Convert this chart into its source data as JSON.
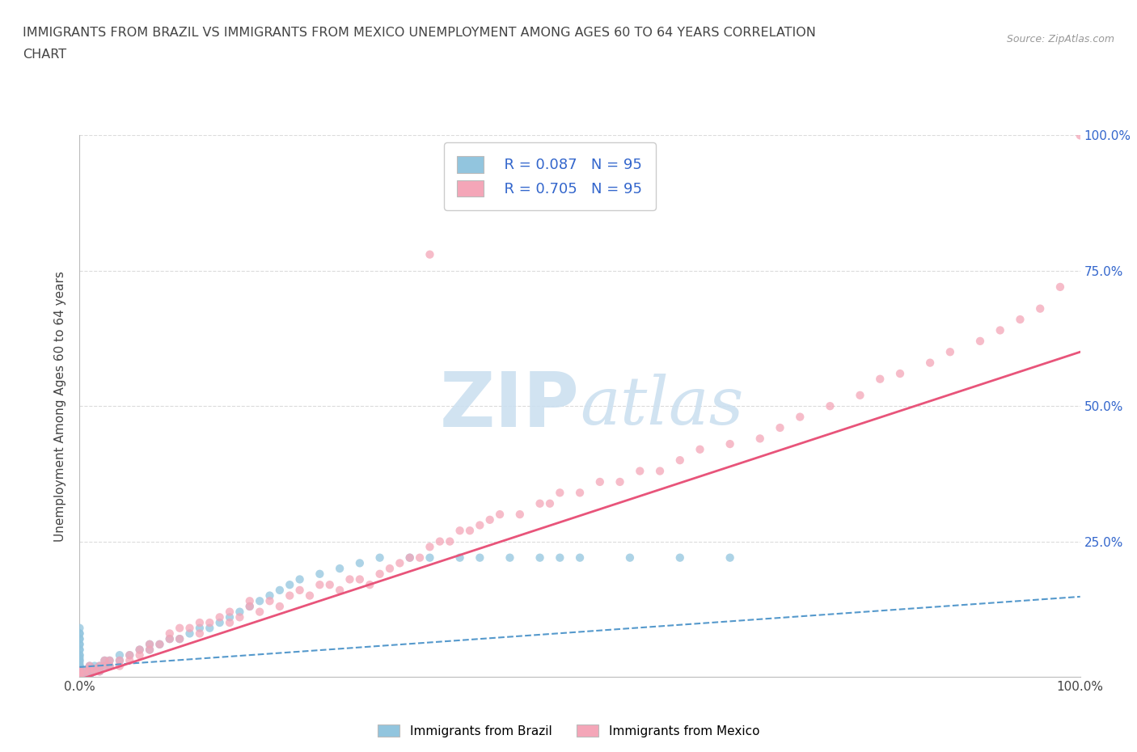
{
  "title_line1": "IMMIGRANTS FROM BRAZIL VS IMMIGRANTS FROM MEXICO UNEMPLOYMENT AMONG AGES 60 TO 64 YEARS CORRELATION",
  "title_line2": "CHART",
  "source": "Source: ZipAtlas.com",
  "ylabel": "Unemployment Among Ages 60 to 64 years",
  "xlim": [
    0,
    1.0
  ],
  "ylim": [
    0,
    1.0
  ],
  "R_brazil": 0.087,
  "R_mexico": 0.705,
  "N": 95,
  "brazil_color": "#92c5de",
  "mexico_color": "#f4a6b8",
  "brazil_line_color": "#5599cc",
  "mexico_line_color": "#e8547a",
  "watermark_color": "#cce0f0",
  "legend_label_brazil": "Immigrants from Brazil",
  "legend_label_mexico": "Immigrants from Mexico",
  "grid_color": "#cccccc",
  "background_color": "#ffffff",
  "axis_label_color": "#3366cc",
  "text_color": "#444444",
  "brazil_trend_slope": 0.13,
  "brazil_trend_intercept": 0.018,
  "mexico_trend_slope": 0.605,
  "mexico_trend_intercept": -0.005,
  "brazil_x": [
    0.0,
    0.0,
    0.0,
    0.0,
    0.0,
    0.0,
    0.0,
    0.0,
    0.0,
    0.0,
    0.0,
    0.0,
    0.0,
    0.0,
    0.0,
    0.0,
    0.0,
    0.0,
    0.0,
    0.0,
    0.0,
    0.0,
    0.0,
    0.0,
    0.0,
    0.0,
    0.0,
    0.0,
    0.0,
    0.0,
    0.0,
    0.0,
    0.0,
    0.0,
    0.0,
    0.0,
    0.0,
    0.0,
    0.0,
    0.0,
    0.0,
    0.0,
    0.0,
    0.005,
    0.005,
    0.005,
    0.01,
    0.01,
    0.01,
    0.01,
    0.01,
    0.015,
    0.015,
    0.02,
    0.02,
    0.025,
    0.025,
    0.03,
    0.03,
    0.04,
    0.04,
    0.05,
    0.06,
    0.07,
    0.07,
    0.08,
    0.09,
    0.1,
    0.11,
    0.12,
    0.13,
    0.14,
    0.15,
    0.16,
    0.17,
    0.18,
    0.19,
    0.2,
    0.21,
    0.22,
    0.24,
    0.26,
    0.28,
    0.3,
    0.33,
    0.35,
    0.38,
    0.4,
    0.43,
    0.46,
    0.48,
    0.5,
    0.55,
    0.6,
    0.65
  ],
  "brazil_y": [
    0.0,
    0.0,
    0.0,
    0.0,
    0.0,
    0.0,
    0.0,
    0.0,
    0.0,
    0.0,
    0.0,
    0.0,
    0.0,
    0.0,
    0.0,
    0.005,
    0.005,
    0.005,
    0.01,
    0.01,
    0.01,
    0.01,
    0.015,
    0.015,
    0.015,
    0.02,
    0.02,
    0.02,
    0.025,
    0.03,
    0.03,
    0.035,
    0.04,
    0.04,
    0.05,
    0.05,
    0.06,
    0.06,
    0.07,
    0.07,
    0.08,
    0.08,
    0.09,
    0.0,
    0.005,
    0.01,
    0.0,
    0.005,
    0.01,
    0.015,
    0.02,
    0.01,
    0.02,
    0.01,
    0.02,
    0.02,
    0.03,
    0.02,
    0.03,
    0.03,
    0.04,
    0.04,
    0.05,
    0.05,
    0.06,
    0.06,
    0.07,
    0.07,
    0.08,
    0.09,
    0.09,
    0.1,
    0.11,
    0.12,
    0.13,
    0.14,
    0.15,
    0.16,
    0.17,
    0.18,
    0.19,
    0.2,
    0.21,
    0.22,
    0.22,
    0.22,
    0.22,
    0.22,
    0.22,
    0.22,
    0.22,
    0.22,
    0.22,
    0.22,
    0.22
  ],
  "mexico_x": [
    0.0,
    0.0,
    0.0,
    0.0,
    0.0,
    0.0,
    0.005,
    0.005,
    0.01,
    0.01,
    0.01,
    0.015,
    0.015,
    0.02,
    0.02,
    0.025,
    0.025,
    0.03,
    0.03,
    0.04,
    0.04,
    0.05,
    0.05,
    0.06,
    0.06,
    0.07,
    0.07,
    0.08,
    0.09,
    0.09,
    0.1,
    0.1,
    0.11,
    0.12,
    0.12,
    0.13,
    0.14,
    0.15,
    0.15,
    0.16,
    0.17,
    0.17,
    0.18,
    0.19,
    0.2,
    0.21,
    0.22,
    0.23,
    0.24,
    0.25,
    0.26,
    0.27,
    0.28,
    0.29,
    0.3,
    0.31,
    0.32,
    0.33,
    0.34,
    0.35,
    0.35,
    0.36,
    0.37,
    0.38,
    0.39,
    0.4,
    0.41,
    0.42,
    0.44,
    0.46,
    0.47,
    0.48,
    0.5,
    0.52,
    0.54,
    0.56,
    0.58,
    0.6,
    0.62,
    0.65,
    0.68,
    0.7,
    0.72,
    0.75,
    0.78,
    0.8,
    0.82,
    0.85,
    0.87,
    0.9,
    0.92,
    0.94,
    0.96,
    0.98,
    1.0
  ],
  "mexico_y": [
    0.0,
    0.0,
    0.0,
    0.005,
    0.01,
    0.01,
    0.005,
    0.01,
    0.01,
    0.015,
    0.02,
    0.01,
    0.015,
    0.01,
    0.02,
    0.02,
    0.03,
    0.02,
    0.03,
    0.02,
    0.03,
    0.03,
    0.04,
    0.04,
    0.05,
    0.05,
    0.06,
    0.06,
    0.07,
    0.08,
    0.07,
    0.09,
    0.09,
    0.08,
    0.1,
    0.1,
    0.11,
    0.1,
    0.12,
    0.11,
    0.13,
    0.14,
    0.12,
    0.14,
    0.13,
    0.15,
    0.16,
    0.15,
    0.17,
    0.17,
    0.16,
    0.18,
    0.18,
    0.17,
    0.19,
    0.2,
    0.21,
    0.22,
    0.22,
    0.78,
    0.24,
    0.25,
    0.25,
    0.27,
    0.27,
    0.28,
    0.29,
    0.3,
    0.3,
    0.32,
    0.32,
    0.34,
    0.34,
    0.36,
    0.36,
    0.38,
    0.38,
    0.4,
    0.42,
    0.43,
    0.44,
    0.46,
    0.48,
    0.5,
    0.52,
    0.55,
    0.56,
    0.58,
    0.6,
    0.62,
    0.64,
    0.66,
    0.68,
    0.72,
    1.0
  ]
}
